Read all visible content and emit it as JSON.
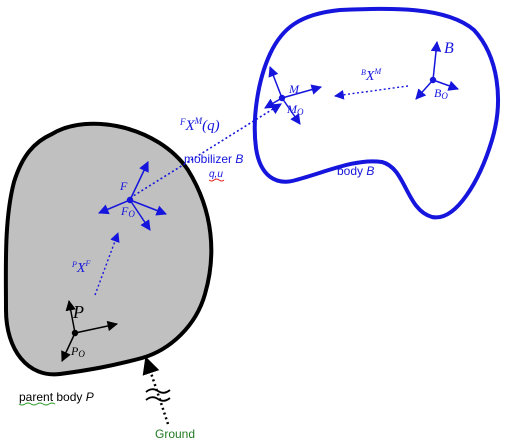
{
  "colors": {
    "blue": "#1515dd",
    "black": "#000000",
    "green": "#217a21",
    "gray_fill": "#c0c0c0"
  },
  "labels": {
    "body_b_frame": "B",
    "body_b_origin_main": "B",
    "body_b_origin_sub": "O",
    "x_m_pre": "B",
    "x_m_main": "X",
    "x_m_sup": "M",
    "m_frame": "M",
    "m_origin_main": "M",
    "m_origin_sub": "O",
    "x_fm_pre": "F",
    "x_fm_main": "X",
    "x_fm_sup": "M",
    "x_fm_arg": "(q)",
    "mobilizer_word": "mobilizer",
    "mobilizer_body": "B",
    "mobilizer_qu": "q,u",
    "body_word": "body",
    "body_letter": "B",
    "f_frame": "F",
    "f_origin_main": "F",
    "f_origin_sub": "O",
    "x_f_pre": "P",
    "x_f_main": "X",
    "x_f_sup": "F",
    "p_frame": "P",
    "p_origin_main": "P",
    "p_origin_sub": "O",
    "parent_word1": "parent",
    "parent_word2": "body",
    "parent_letter": "P",
    "ground": "Ground"
  }
}
